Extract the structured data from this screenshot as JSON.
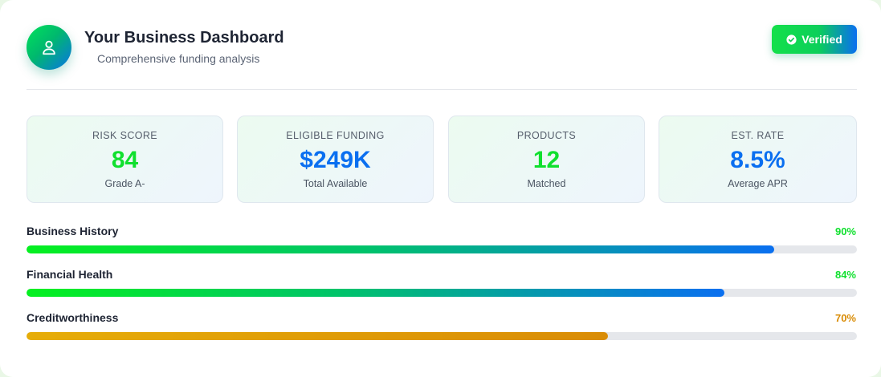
{
  "header": {
    "title": "Your Business Dashboard",
    "subtitle": "Comprehensive funding analysis",
    "avatar_icon": "user-icon",
    "badge": {
      "label": "Verified",
      "icon": "check-circle-icon"
    }
  },
  "stats": [
    {
      "label": "RISK SCORE",
      "value": "84",
      "sub": "Grade A-",
      "color": "#10e02e"
    },
    {
      "label": "ELIGIBLE FUNDING",
      "value": "$249K",
      "sub": "Total Available",
      "color": "#0a6ff0"
    },
    {
      "label": "PRODUCTS",
      "value": "12",
      "sub": "Matched",
      "color": "#10e02e"
    },
    {
      "label": "EST. RATE",
      "value": "8.5%",
      "sub": "Average APR",
      "color": "#0a6ff0"
    }
  ],
  "metrics": [
    {
      "label": "Business History",
      "percent_text": "90%",
      "percent": 90,
      "color": "#10e02e"
    },
    {
      "label": "Financial Health",
      "percent_text": "84%",
      "percent": 84,
      "color": "#10e02e"
    },
    {
      "label": "Creditworthiness",
      "percent_text": "70%",
      "percent": 70,
      "color": "#d98c06"
    }
  ]
}
